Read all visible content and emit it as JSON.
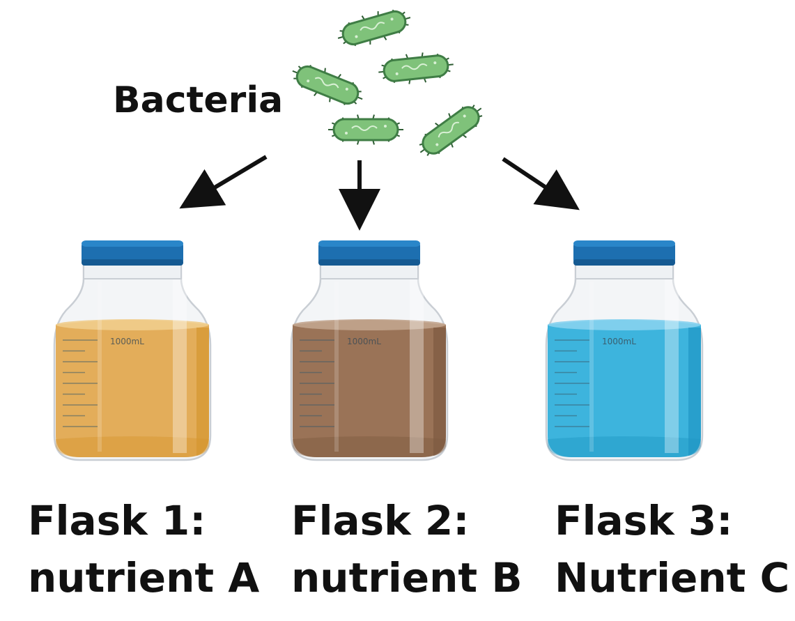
{
  "title": "Bacteria",
  "bacteria_count": 5,
  "flasks": [
    {
      "line1": "Flask 1:",
      "line2": "nutrient A",
      "volume_label": "1000mL",
      "liquid_color": "#e3ad5a",
      "liquid_dark": "#d4952f",
      "liquid_light": "#f0cd8c"
    },
    {
      "line1": "Flask 2:",
      "line2": "nutrient B",
      "volume_label": "1000mL",
      "liquid_color": "#9a7357",
      "liquid_dark": "#7e5a40",
      "liquid_light": "#c2a58e"
    },
    {
      "line1": "Flask 3:",
      "line2": "Nutrient C",
      "volume_label": "1000mL",
      "liquid_color": "#3db4dd",
      "liquid_dark": "#1f96c4",
      "liquid_light": "#86d2ee"
    }
  ],
  "colors": {
    "cap": "#1d6fb0",
    "cap_dark": "#155a92",
    "bacterium_fill": "#7fc27a",
    "bacterium_stroke": "#3f7d45",
    "arrow": "#111111"
  }
}
